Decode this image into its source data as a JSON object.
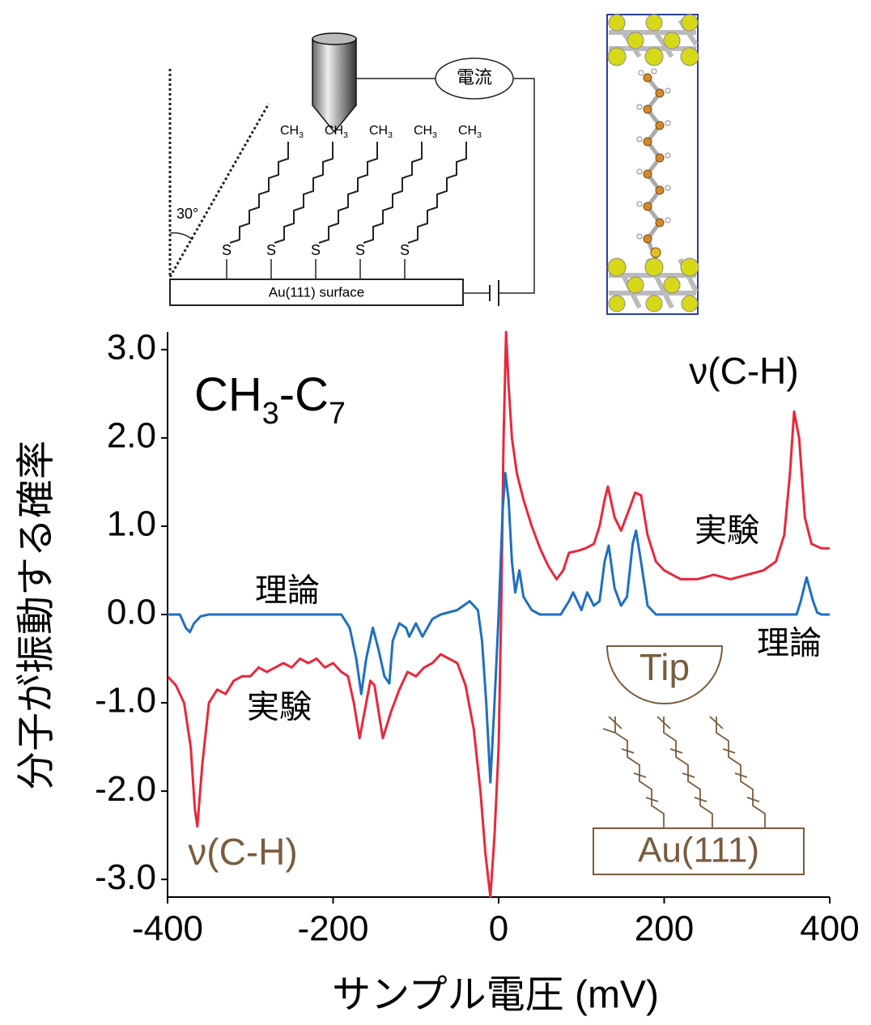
{
  "chart_data": {
    "type": "line",
    "xlim": [
      -400,
      400
    ],
    "ylim": [
      -3.2,
      3.2
    ],
    "xticks": [
      -400,
      -200,
      0,
      200,
      400
    ],
    "yticks": [
      {
        "value": 3,
        "label": "3.0"
      },
      {
        "value": 2,
        "label": "2.0"
      },
      {
        "value": 1,
        "label": "1.0"
      },
      {
        "value": 0,
        "label": "0.0"
      },
      {
        "value": -1,
        "label": "-1.0"
      },
      {
        "value": -2,
        "label": "-2.0"
      },
      {
        "value": -3,
        "label": "-3.0"
      }
    ],
    "xlabel": "サンプル電圧 (mV)",
    "ylabel": "分子が振動する確率",
    "formula": [
      "CH",
      "3",
      "-C",
      "7"
    ],
    "mode_label": "ν(C-H)",
    "inset": {
      "tip": "Tip",
      "surface": "Au(111)"
    },
    "series": [
      {
        "name": "実験",
        "color": "#e8283c",
        "x": [
          -400,
          -390,
          -380,
          -372,
          -367,
          -364,
          -358,
          -350,
          -340,
          -330,
          -320,
          -310,
          -300,
          -290,
          -280,
          -270,
          -260,
          -250,
          -240,
          -230,
          -220,
          -210,
          -200,
          -190,
          -182,
          -175,
          -168,
          -162,
          -155,
          -150,
          -145,
          -140,
          -130,
          -120,
          -110,
          -100,
          -90,
          -80,
          -70,
          -60,
          -50,
          -40,
          -30,
          -22,
          -16,
          -10,
          -5,
          0,
          3,
          6,
          9,
          12,
          16,
          22,
          30,
          40,
          50,
          60,
          70,
          78,
          85,
          95,
          105,
          115,
          122,
          128,
          132,
          140,
          148,
          158,
          165,
          172,
          180,
          190,
          200,
          210,
          220,
          240,
          260,
          280,
          300,
          320,
          335,
          345,
          352,
          357,
          363,
          370,
          378,
          390,
          400
        ],
        "values": [
          -0.7,
          -0.8,
          -1.0,
          -1.5,
          -2.2,
          -2.4,
          -1.7,
          -1.0,
          -0.85,
          -0.9,
          -0.75,
          -0.7,
          -0.7,
          -0.6,
          -0.65,
          -0.6,
          -0.55,
          -0.6,
          -0.5,
          -0.55,
          -0.5,
          -0.6,
          -0.55,
          -0.65,
          -0.7,
          -1.0,
          -1.4,
          -1.1,
          -0.75,
          -0.8,
          -1.1,
          -1.4,
          -1.1,
          -0.85,
          -0.65,
          -0.7,
          -0.6,
          -0.55,
          -0.45,
          -0.5,
          -0.55,
          -0.8,
          -1.3,
          -2.0,
          -2.7,
          -3.2,
          -2.5,
          -1.5,
          0,
          2.0,
          3.2,
          2.6,
          2.0,
          1.6,
          1.3,
          1.0,
          0.75,
          0.55,
          0.4,
          0.5,
          0.7,
          0.72,
          0.75,
          0.8,
          1.0,
          1.3,
          1.45,
          1.1,
          0.95,
          1.2,
          1.38,
          1.35,
          0.9,
          0.6,
          0.5,
          0.45,
          0.4,
          0.4,
          0.45,
          0.4,
          0.45,
          0.5,
          0.6,
          0.9,
          1.6,
          2.3,
          2.0,
          1.1,
          0.8,
          0.75,
          0.75
        ]
      },
      {
        "name": "理論",
        "color": "#1f6fbf",
        "x": [
          -400,
          -385,
          -378,
          -373,
          -368,
          -360,
          -350,
          -190,
          -180,
          -172,
          -166,
          -160,
          -152,
          -145,
          -138,
          -132,
          -128,
          -120,
          -112,
          -108,
          -100,
          -92,
          -80,
          -70,
          -50,
          -35,
          -25,
          -20,
          -15,
          -10,
          -5,
          0,
          5,
          8,
          12,
          16,
          20,
          25,
          30,
          40,
          50,
          60,
          75,
          85,
          90,
          100,
          107,
          115,
          122,
          128,
          133,
          140,
          148,
          155,
          162,
          166,
          172,
          180,
          190,
          360,
          365,
          372,
          380,
          385,
          390,
          400
        ],
        "values": [
          0,
          0,
          -0.15,
          -0.2,
          -0.1,
          -0.02,
          0,
          0,
          -0.15,
          -0.5,
          -0.9,
          -0.5,
          -0.15,
          -0.4,
          -0.7,
          -0.78,
          -0.3,
          -0.1,
          -0.15,
          -0.25,
          -0.1,
          -0.25,
          -0.05,
          0,
          0.05,
          0.15,
          0.05,
          -0.3,
          -1.0,
          -1.9,
          -1.0,
          0,
          1.2,
          1.6,
          1.3,
          0.6,
          0.25,
          0.5,
          0.2,
          0.05,
          0,
          0,
          0,
          0.15,
          0.25,
          0.05,
          0.25,
          0.1,
          0.15,
          0.6,
          0.78,
          0.3,
          0.1,
          0.2,
          0.8,
          0.95,
          0.6,
          0.1,
          0,
          0,
          0.15,
          0.42,
          0.15,
          0.02,
          0,
          0
        ]
      }
    ]
  },
  "diagram": {
    "current": "電流",
    "methyl": [
      "CH",
      "3"
    ],
    "sulfur": "S",
    "angle": "30°",
    "surface": "Au(111) surface"
  }
}
